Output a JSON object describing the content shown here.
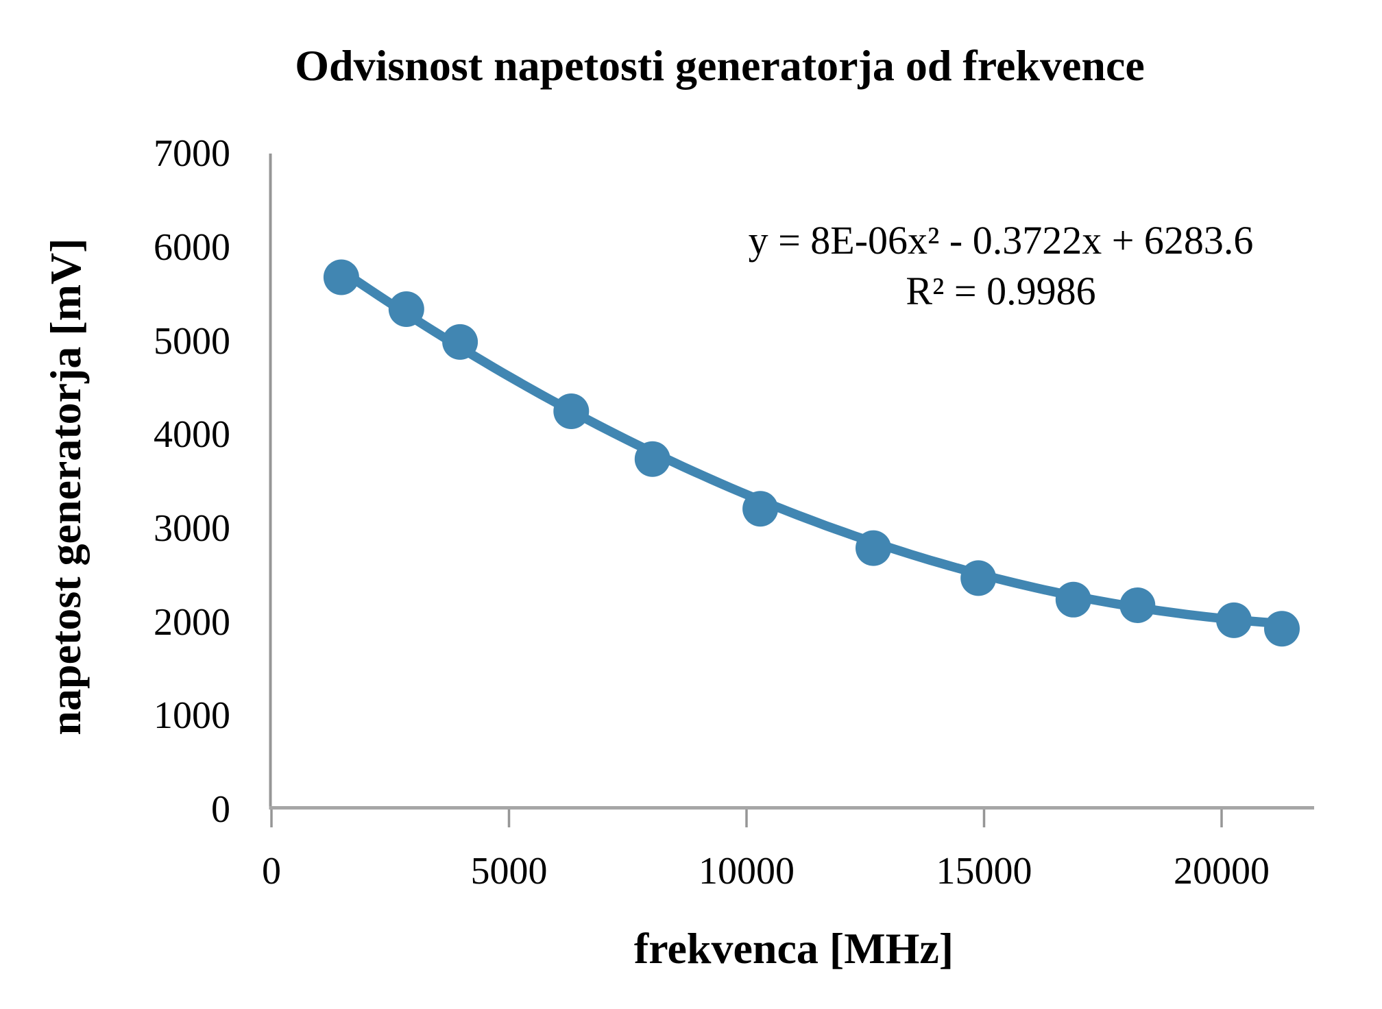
{
  "title": "Odvisnost napetosti generatorja od frekvence",
  "equation": {
    "line1": "y = 8E-06x² - 0.3722x + 6283.6",
    "line2": "R² = 0.9986"
  },
  "axes": {
    "x": {
      "label": "frekvenca [MHz]"
    },
    "y": {
      "label": "napetost generatorja [mV]"
    }
  },
  "chart_data": {
    "type": "scatter",
    "title": "Odvisnost napetosti generatorja od frekvence",
    "xlabel": "frekvenca [MHz]",
    "ylabel": "napetost generatorja [mV]",
    "xlim": [
      0,
      21950
    ],
    "ylim": [
      0,
      7000
    ],
    "x_ticks": [
      0,
      5000,
      10000,
      15000,
      20000
    ],
    "y_ticks": [
      0,
      1000,
      2000,
      3000,
      4000,
      5000,
      6000,
      7000
    ],
    "grid": false,
    "legend": "none",
    "series": [
      {
        "name": "napetost generatorja",
        "x": [
          1470,
          2840,
          3970,
          6310,
          8020,
          10290,
          12670,
          14880,
          16880,
          18230,
          20260,
          21270
        ],
        "y": [
          5680,
          5340,
          4990,
          4250,
          3740,
          3210,
          2790,
          2470,
          2240,
          2180,
          2020,
          1930
        ]
      }
    ],
    "trendline": {
      "kind": "polynomial",
      "degree": 2,
      "a": 8e-06,
      "b": -0.3722,
      "c": 6283.6,
      "r2": 0.9986,
      "x_start": 1470,
      "x_end": 21400,
      "equation_text": "y = 8E-06x² - 0.3722x + 6283.6",
      "r2_text": "R² = 0.9986"
    },
    "colors": {
      "series": "#4186B2",
      "axis_line": "#969696",
      "baseline": "#a6a6a6",
      "text": "#000000"
    }
  }
}
